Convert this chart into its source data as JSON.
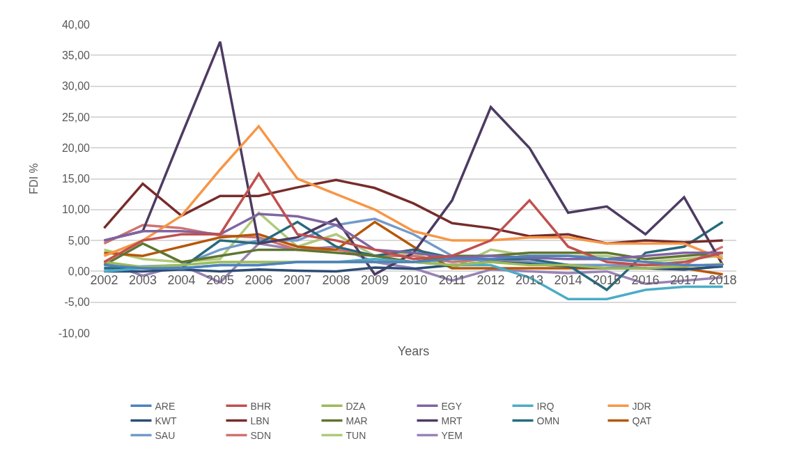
{
  "chart_data": {
    "type": "line",
    "xlabel": "Years",
    "ylabel": "FDI %",
    "categories": [
      "2002",
      "2003",
      "2004",
      "2005",
      "2006",
      "2007",
      "2008",
      "2009",
      "2010",
      "2011",
      "2012",
      "2013",
      "2014",
      "2015",
      "2016",
      "2017",
      "2018"
    ],
    "ylim": [
      -10,
      40
    ],
    "yticks": [
      {
        "value": -10,
        "label": "-10,00"
      },
      {
        "value": -5,
        "label": "-5,00"
      },
      {
        "value": 0,
        "label": "0,00"
      },
      {
        "value": 5,
        "label": "5,00"
      },
      {
        "value": 10,
        "label": "10,00"
      },
      {
        "value": 15,
        "label": "15,00"
      },
      {
        "value": 20,
        "label": "20,00"
      },
      {
        "value": 25,
        "label": "25,00"
      },
      {
        "value": 30,
        "label": "30,00"
      },
      {
        "value": 35,
        "label": "35,00"
      },
      {
        "value": 40,
        "label": "40,00"
      }
    ],
    "grid": "y",
    "legend": "bottom",
    "marker": "none",
    "line_style": "solid",
    "series": [
      {
        "name": "ARE",
        "color": "#4f81bd",
        "values": [
          1,
          0.5,
          0.5,
          1,
          1,
          1.5,
          1.5,
          1.5,
          1.5,
          2,
          2,
          2.5,
          2.5,
          2,
          1.5,
          1,
          1
        ]
      },
      {
        "name": "BHR",
        "color": "#c0504d",
        "values": [
          1.5,
          5,
          6,
          6,
          15.8,
          6,
          5,
          3.5,
          2,
          2.5,
          5,
          11.5,
          4,
          1.5,
          1,
          1.5,
          3
        ]
      },
      {
        "name": "DZA",
        "color": "#9bbb59",
        "values": [
          1.5,
          0.7,
          1,
          1.5,
          1.5,
          1.5,
          1.5,
          1.5,
          1.5,
          1,
          1.5,
          1,
          1,
          0.5,
          0.5,
          0.8,
          1.2
        ]
      },
      {
        "name": "EGY",
        "color": "#8064a2",
        "values": [
          5,
          6.5,
          6.5,
          6,
          9.3,
          8.9,
          7.5,
          3.5,
          3,
          2.2,
          2.5,
          2.2,
          2,
          2,
          2.5,
          3,
          3
        ]
      },
      {
        "name": "IRQ",
        "color": "#4bacc6",
        "values": [
          0,
          0.5,
          0.5,
          1,
          1,
          1.5,
          1.5,
          2,
          1.5,
          1,
          1,
          -1,
          -4.5,
          -4.5,
          -3,
          -2.5,
          -2.5
        ]
      },
      {
        "name": "JDR",
        "color": "#f79646",
        "values": [
          2.5,
          5,
          9,
          16.5,
          23.5,
          15,
          12.5,
          10,
          6.5,
          5,
          5,
          5.5,
          5.5,
          4.5,
          4.5,
          4.5,
          2
        ]
      },
      {
        "name": "KWT",
        "color": "#2c4d75",
        "values": [
          0,
          0,
          0.3,
          0,
          0.3,
          0.1,
          0,
          0.6,
          0.4,
          1,
          1.5,
          1.2,
          0.8,
          0.5,
          0.5,
          0.3,
          0.8
        ]
      },
      {
        "name": "LBN",
        "color": "#772c2a",
        "values": [
          7,
          14.2,
          9,
          12.2,
          12.2,
          13.6,
          14.8,
          13.5,
          11,
          7.8,
          7,
          5.7,
          6,
          4.5,
          5,
          4.7,
          5
        ]
      },
      {
        "name": "MAR",
        "color": "#5f7530",
        "values": [
          1,
          4.5,
          1.5,
          2.5,
          3.5,
          3.5,
          3,
          2.5,
          1.5,
          2.5,
          2.5,
          3,
          3,
          3,
          2,
          2.5,
          3
        ]
      },
      {
        "name": "MRT",
        "color": "#4d3b62",
        "values": [
          5,
          6.5,
          22,
          37.2,
          4.5,
          5.5,
          8.5,
          -0.5,
          3,
          11.5,
          26.6,
          20,
          9.5,
          10.5,
          6,
          12,
          1
        ]
      },
      {
        "name": "OMN",
        "color": "#276a7c",
        "values": [
          0.5,
          0.5,
          0.5,
          5,
          4.5,
          8,
          4,
          2.5,
          3.5,
          2.2,
          2,
          2,
          1,
          -3,
          3,
          4,
          8
        ]
      },
      {
        "name": "QAT",
        "color": "#b65708",
        "values": [
          3,
          2.5,
          4,
          5.5,
          6,
          4,
          3.5,
          8,
          4,
          0.5,
          0.5,
          0.5,
          0.5,
          0.5,
          0.5,
          0.5,
          -0.5
        ]
      },
      {
        "name": "SAU",
        "color": "#729aca",
        "values": [
          0.5,
          0.8,
          1,
          3.5,
          5,
          5,
          7.5,
          8.5,
          6,
          2.5,
          1.5,
          1.5,
          1,
          1,
          0.5,
          0.3,
          0.8
        ]
      },
      {
        "name": "SDN",
        "color": "#cd7371",
        "values": [
          4.5,
          7.5,
          7,
          5.8,
          5.5,
          3.5,
          3.5,
          2.5,
          2.5,
          1.5,
          2,
          1.5,
          1,
          1,
          1,
          1,
          4
        ]
      },
      {
        "name": "TUN",
        "color": "#afc97a",
        "values": [
          3.5,
          2,
          1.5,
          2,
          9.5,
          4,
          6,
          2.5,
          3,
          0.5,
          3.5,
          2.5,
          2.5,
          2.5,
          1.5,
          2,
          2.5
        ]
      },
      {
        "name": "YEM",
        "color": "#9983b5",
        "values": [
          1.5,
          -0.7,
          1,
          -1.8,
          4.5,
          3.5,
          4,
          1.5,
          0.5,
          -1.5,
          0.3,
          0,
          -0.3,
          0,
          -2,
          -1.5,
          -1
        ]
      }
    ]
  }
}
